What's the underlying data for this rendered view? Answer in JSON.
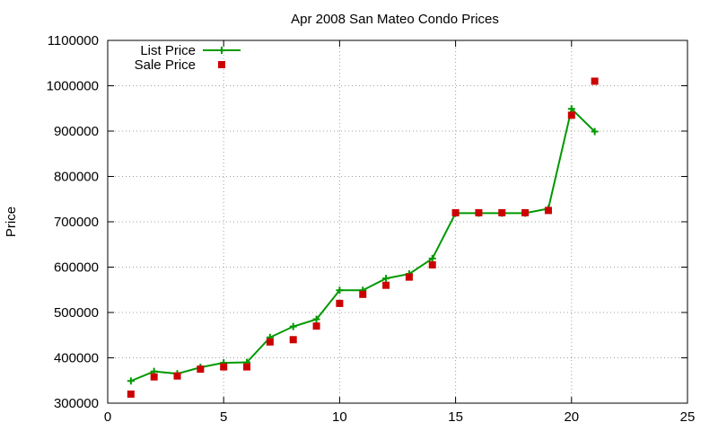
{
  "chart_data": {
    "type": "line",
    "title": "Apr 2008 San Mateo Condo Prices",
    "xlabel": "",
    "ylabel": "Price",
    "xlim": [
      0,
      25
    ],
    "ylim": [
      300000,
      1100000
    ],
    "x_ticks": [
      "0",
      "5",
      "10",
      "15",
      "20",
      "25"
    ],
    "y_ticks": [
      "300000",
      "400000",
      "500000",
      "600000",
      "700000",
      "800000",
      "900000",
      "1000000",
      "1100000"
    ],
    "grid": true,
    "legend_position": "top-left",
    "series": [
      {
        "name": "List Price",
        "style": "line+cross",
        "color": "#009900",
        "x": [
          1,
          2,
          3,
          4,
          5,
          6,
          7,
          8,
          9,
          10,
          11,
          12,
          13,
          14,
          15,
          16,
          17,
          18,
          19,
          20,
          21
        ],
        "y": [
          349000,
          370000,
          365000,
          379000,
          389000,
          390000,
          445000,
          469000,
          485000,
          549000,
          549000,
          575000,
          585000,
          619000,
          719000,
          719000,
          719000,
          719000,
          729000,
          949000,
          899000
        ]
      },
      {
        "name": "Sale Price",
        "style": "square",
        "color": "#cc0000",
        "x": [
          1,
          2,
          3,
          4,
          5,
          6,
          7,
          8,
          9,
          10,
          11,
          12,
          13,
          14,
          15,
          16,
          17,
          18,
          19,
          20,
          21
        ],
        "y": [
          320000,
          358000,
          360000,
          375000,
          380000,
          380000,
          435000,
          440000,
          470000,
          520000,
          540000,
          560000,
          578000,
          605000,
          720000,
          720000,
          720000,
          720000,
          725000,
          935000,
          1010000
        ]
      }
    ]
  }
}
